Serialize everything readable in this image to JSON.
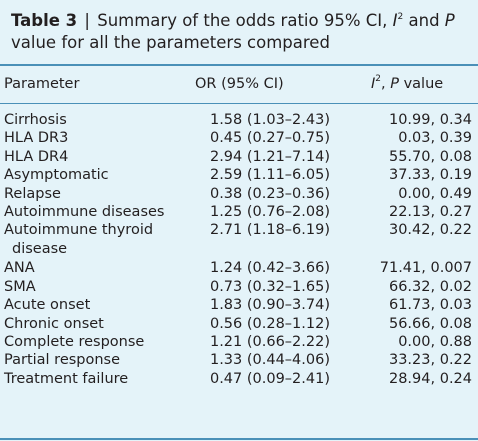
{
  "caption": {
    "label": "Table 3",
    "separator": "|",
    "text_part1": "Summary of the odds ratio 95% CI, ",
    "i_letter": "I",
    "i_sup": "2",
    "text_part2": " and ",
    "p_letter": "P",
    "text_part3": "value for all the parameters compared"
  },
  "header": {
    "param": "Parameter",
    "or": "OR (95% CI)",
    "i_letter": "I",
    "i_sup": "2",
    "i_rest": ", ",
    "p_letter": "P",
    "p_rest": " value"
  },
  "rows": [
    {
      "param": "Cirrhosis",
      "or": "1.58 (1.03–2.43)",
      "i2p": "10.99, 0.34"
    },
    {
      "param": "HLA DR3",
      "or": "0.45 (0.27–0.75)",
      "i2p": "0.03, 0.39"
    },
    {
      "param": "HLA DR4",
      "or": "2.94 (1.21–7.14)",
      "i2p": "55.70, 0.08"
    },
    {
      "param": "Asymptomatic",
      "or": "2.59 (1.11–6.05)",
      "i2p": "37.33, 0.19"
    },
    {
      "param": "Relapse",
      "or": "0.38 (0.23–0.36)",
      "i2p": "0.00, 0.49"
    },
    {
      "param": "Autoimmune diseases",
      "or": "1.25 (0.76–2.08)",
      "i2p": "22.13, 0.27"
    },
    {
      "param": "Autoimmune thyroid",
      "param_cont": "disease",
      "or": "2.71 (1.18–6.19)",
      "i2p": "30.42, 0.22"
    },
    {
      "param": "ANA",
      "or": "1.24 (0.42–3.66)",
      "i2p": "71.41, 0.007"
    },
    {
      "param": "SMA",
      "or": "0.73 (0.32–1.65)",
      "i2p": "66.32, 0.02"
    },
    {
      "param": "Acute onset",
      "or": "1.83 (0.90–3.74)",
      "i2p": "61.73, 0.03"
    },
    {
      "param": "Chronic onset",
      "or": "0.56 (0.28–1.12)",
      "i2p": "56.66, 0.08"
    },
    {
      "param": "Complete response",
      "or": "1.21 (0.66–2.22)",
      "i2p": "0.00, 0.88"
    },
    {
      "param": "Partial response",
      "or": "1.33 (0.44–4.06)",
      "i2p": "33.23, 0.22"
    },
    {
      "param": "Treatment failure",
      "or": "0.47 (0.09–2.41)",
      "i2p": "28.94, 0.24"
    }
  ],
  "colors": {
    "background": "#e4f3f9",
    "rule": "#4a90b8",
    "text": "#231f20"
  }
}
